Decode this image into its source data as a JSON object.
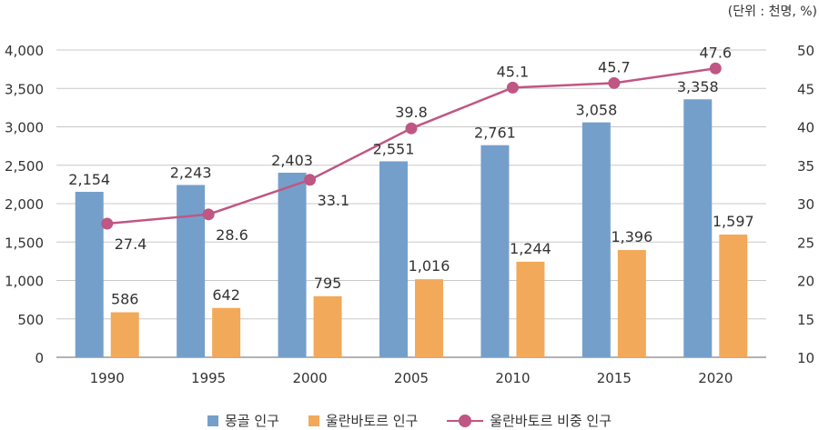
{
  "unit_note": "(단위 : 천명, %)",
  "colors": {
    "mongolia": "#759FCB",
    "ulaanbaatar": "#F2A95A",
    "share": "#C05683",
    "axis": "#666666",
    "grid": "#c8c8c8"
  },
  "legend": {
    "mongolia": "몽골 인구",
    "ulaanbaatar": "울란바토르 인구",
    "share": "울란바토르 비중 인구"
  },
  "chart_data": {
    "type": "bar",
    "categories": [
      "1990",
      "1995",
      "2000",
      "2005",
      "2010",
      "2015",
      "2020"
    ],
    "series": [
      {
        "name": "몽골 인구",
        "kind": "bar",
        "axis": "left",
        "values": [
          2154,
          2243,
          2403,
          2551,
          2761,
          3058,
          3358
        ]
      },
      {
        "name": "울란바토르 인구",
        "kind": "bar",
        "axis": "left",
        "values": [
          586,
          642,
          795,
          1016,
          1244,
          1396,
          1597
        ]
      },
      {
        "name": "울란바토르 비중 인구",
        "kind": "line",
        "axis": "right",
        "values": [
          27.4,
          28.6,
          33.1,
          39.8,
          45.1,
          45.7,
          47.6
        ]
      }
    ],
    "data_labels": {
      "mongolia": [
        "2,154",
        "2,243",
        "2,403",
        "2,551",
        "2,761",
        "3,058",
        "3,358"
      ],
      "ulaanbaatar": [
        "586",
        "642",
        "795",
        "1,016",
        "1,244",
        "1,396",
        "1,597"
      ],
      "share": [
        "27.4",
        "28.6",
        "33.1",
        "39.8",
        "45.1",
        "45.7",
        "47.6"
      ]
    },
    "y_left": {
      "ylim": [
        0,
        4000
      ],
      "ticks": [
        "0",
        "500",
        "1,000",
        "1,500",
        "2,000",
        "2,500",
        "3,000",
        "3,500",
        "4,000"
      ]
    },
    "y_right": {
      "ylim": [
        10,
        50
      ],
      "ticks": [
        "10",
        "15",
        "20",
        "25",
        "30",
        "35",
        "40",
        "45",
        "50"
      ]
    },
    "grid": true,
    "legend_position": "bottom"
  }
}
